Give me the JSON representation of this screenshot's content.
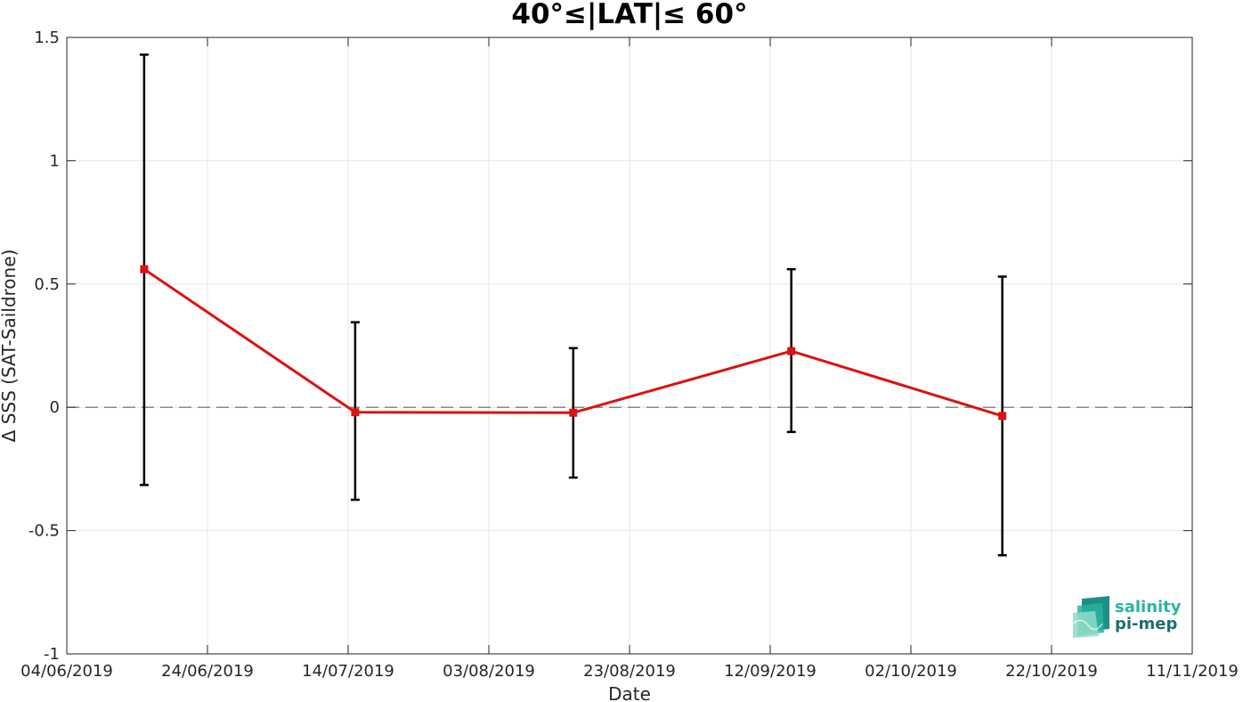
{
  "chart_data": {
    "type": "line",
    "title": "40°≤|LAT|≤ 60°",
    "xlabel": "Date",
    "ylabel": "Δ SSS (SAT-Saildrone)",
    "xlim": [
      "04/06/2019",
      "11/11/2019"
    ],
    "ylim": [
      -1,
      1.5
    ],
    "x_ticks": [
      "04/06/2019",
      "24/06/2019",
      "14/07/2019",
      "03/08/2019",
      "23/08/2019",
      "12/09/2019",
      "02/10/2019",
      "22/10/2019",
      "11/11/2019"
    ],
    "y_ticks": [
      1.5,
      1,
      0.5,
      0,
      -0.5,
      -1
    ],
    "y_tick_labels": [
      "1.5",
      "1",
      "0.5",
      "0",
      "-0.5",
      "-1"
    ],
    "grid": true,
    "zero_reference_line": {
      "y": 0,
      "style": "dashed",
      "color": "#666666"
    },
    "series": [
      {
        "color": "#dd1111",
        "marker": "square",
        "points": [
          {
            "x": "15/06/2019",
            "y": 0.56,
            "err_low": -0.315,
            "err_high": 1.43
          },
          {
            "x": "15/07/2019",
            "y": -0.02,
            "err_low": -0.375,
            "err_high": 0.345
          },
          {
            "x": "15/08/2019",
            "y": -0.022,
            "err_low": -0.285,
            "err_high": 0.24
          },
          {
            "x": "15/09/2019",
            "y": 0.228,
            "err_low": -0.1,
            "err_high": 0.56
          },
          {
            "x": "15/10/2019",
            "y": -0.035,
            "err_low": -0.6,
            "err_high": 0.53
          }
        ],
        "errorbar_color": "#000000"
      }
    ]
  },
  "logo": {
    "line1": "salinity",
    "line2": "pi-mep",
    "color1": "#2ab3a0",
    "color2": "#1f6f6a"
  }
}
